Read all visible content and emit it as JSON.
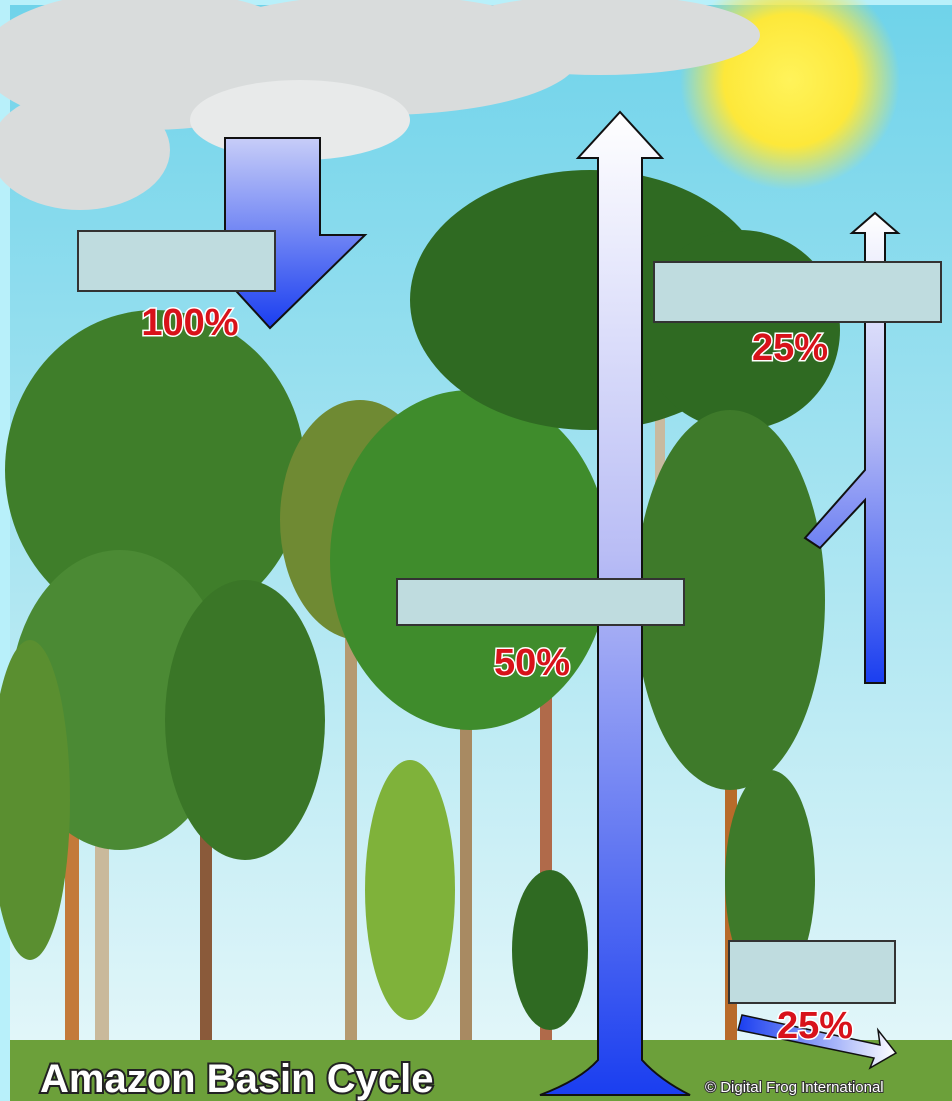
{
  "title": "Amazon Basin Cycle",
  "credit": "© Digital Frog International",
  "percentages": [
    "100%",
    "25%",
    "50%",
    "25%"
  ]
}
